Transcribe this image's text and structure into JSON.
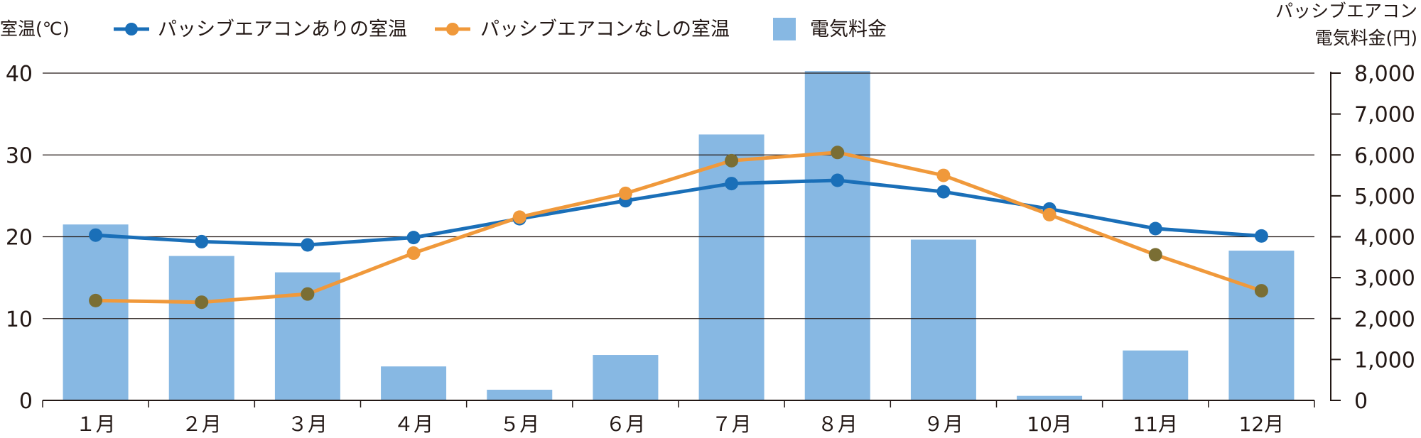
{
  "chart_data": {
    "type": "bar+line",
    "categories": [
      "１月",
      "２月",
      "３月",
      "４月",
      "５月",
      "６月",
      "７月",
      "８月",
      "９月",
      "10月",
      "11月",
      "12月"
    ],
    "y_left": {
      "label": "室温(℃)",
      "ylim": [
        0,
        40
      ],
      "ticks": [
        "0",
        "10",
        "20",
        "30",
        "40"
      ]
    },
    "y_right": {
      "label_line1": "パッシブエアコン",
      "label_line2": "電気料金(円)",
      "ylim": [
        0,
        8000
      ],
      "ticks": [
        "0",
        "1,000",
        "2,000",
        "3,000",
        "4,000",
        "5,000",
        "6,000",
        "7,000",
        "8,000"
      ]
    },
    "grid": true,
    "legend_position": "top",
    "series": [
      {
        "name": "パッシブエアコンありの室温",
        "type": "line",
        "axis": "left",
        "color": "#1a6fb8",
        "values": [
          20.2,
          19.4,
          19.0,
          19.9,
          22.2,
          24.4,
          26.5,
          26.9,
          25.5,
          23.4,
          21.0,
          20.1
        ]
      },
      {
        "name": "パッシブエアコンなしの室温",
        "type": "line",
        "axis": "left",
        "color": "#f0993b",
        "values": [
          12.2,
          12.0,
          13.0,
          18.0,
          22.4,
          25.3,
          29.3,
          30.3,
          27.5,
          22.7,
          17.8,
          13.4
        ]
      },
      {
        "name": "電気料金",
        "type": "bar",
        "axis": "right",
        "color": "#87b8e3",
        "values": [
          4300,
          3530,
          3130,
          830,
          260,
          1110,
          6500,
          8050,
          3930,
          110,
          1220,
          3660
        ]
      }
    ],
    "overlap_marker_color": "#7a6e34"
  }
}
